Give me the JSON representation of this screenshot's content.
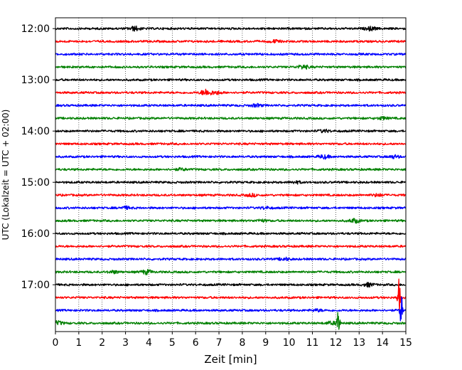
{
  "chart_data": {
    "type": "line",
    "title": "",
    "xlabel": "Zeit  [min]",
    "ylabel": "UTC (Lokalzeit = UTC + 02:00)",
    "xlim": [
      0,
      15
    ],
    "x_ticks": [
      "0",
      "1",
      "2",
      "3",
      "4",
      "5",
      "6",
      "7",
      "8",
      "9",
      "10",
      "11",
      "12",
      "13",
      "14",
      "15"
    ],
    "y_ticks": [
      "12:00",
      "13:00",
      "14:00",
      "15:00",
      "16:00",
      "17:00"
    ],
    "grid": "vertical dotted",
    "trace_colors": [
      "#000000",
      "#ff0000",
      "#0000ff",
      "#008000"
    ],
    "series": [
      {
        "start": "12:00",
        "color": "#000000",
        "events": [
          {
            "t": 3.4,
            "amp": 0.3
          },
          {
            "t": 13.5,
            "amp": 0.25
          }
        ]
      },
      {
        "start": "12:15",
        "color": "#ff0000",
        "events": [
          {
            "t": 9.4,
            "amp": 0.18
          }
        ]
      },
      {
        "start": "12:30",
        "color": "#0000ff",
        "events": []
      },
      {
        "start": "12:45",
        "color": "#008000",
        "events": [
          {
            "t": 10.6,
            "amp": 0.28
          }
        ]
      },
      {
        "start": "13:00",
        "color": "#000000",
        "events": []
      },
      {
        "start": "13:15",
        "color": "#ff0000",
        "events": [
          {
            "t": 6.45,
            "amp": 0.45
          },
          {
            "t": 6.9,
            "amp": 0.2
          }
        ]
      },
      {
        "start": "13:30",
        "color": "#0000ff",
        "events": [
          {
            "t": 8.6,
            "amp": 0.2
          }
        ]
      },
      {
        "start": "13:45",
        "color": "#008000",
        "events": [
          {
            "t": 14.0,
            "amp": 0.18
          }
        ]
      },
      {
        "start": "14:00",
        "color": "#000000",
        "events": [
          {
            "t": 11.5,
            "amp": 0.18
          }
        ]
      },
      {
        "start": "14:15",
        "color": "#ff0000",
        "events": []
      },
      {
        "start": "14:30",
        "color": "#0000ff",
        "events": [
          {
            "t": 11.5,
            "amp": 0.25
          },
          {
            "t": 14.5,
            "amp": 0.2
          }
        ]
      },
      {
        "start": "14:45",
        "color": "#008000",
        "events": [
          {
            "t": 5.4,
            "amp": 0.15
          }
        ]
      },
      {
        "start": "15:00",
        "color": "#000000",
        "events": [
          {
            "t": 10.3,
            "amp": 0.15
          }
        ]
      },
      {
        "start": "15:15",
        "color": "#ff0000",
        "events": [
          {
            "t": 8.4,
            "amp": 0.18
          },
          {
            "t": 13.8,
            "amp": 0.18
          }
        ]
      },
      {
        "start": "15:30",
        "color": "#0000ff",
        "events": [
          {
            "t": 3.0,
            "amp": 0.18
          },
          {
            "t": 9.0,
            "amp": 0.15
          }
        ]
      },
      {
        "start": "15:45",
        "color": "#008000",
        "events": [
          {
            "t": 12.8,
            "amp": 0.28
          },
          {
            "t": 8.8,
            "amp": 0.15
          }
        ]
      },
      {
        "start": "16:00",
        "color": "#000000",
        "events": []
      },
      {
        "start": "16:15",
        "color": "#ff0000",
        "events": []
      },
      {
        "start": "16:30",
        "color": "#0000ff",
        "events": [
          {
            "t": 9.8,
            "amp": 0.2
          }
        ]
      },
      {
        "start": "16:45",
        "color": "#008000",
        "events": [
          {
            "t": 3.9,
            "amp": 0.3
          },
          {
            "t": 2.5,
            "amp": 0.18
          }
        ]
      },
      {
        "start": "17:00",
        "color": "#000000",
        "events": [
          {
            "t": 13.4,
            "amp": 0.25
          }
        ]
      },
      {
        "start": "17:15",
        "color": "#ff0000",
        "events": [
          {
            "t": 14.7,
            "amp": 1.0
          }
        ]
      },
      {
        "start": "17:30",
        "color": "#0000ff",
        "events": [
          {
            "t": 14.8,
            "amp": 0.9
          },
          {
            "t": 11.2,
            "amp": 0.15
          }
        ]
      },
      {
        "start": "17:45",
        "color": "#008000",
        "events": [
          {
            "t": 12.1,
            "amp": 0.9
          },
          {
            "t": 11.8,
            "amp": 0.2
          },
          {
            "t": 0.1,
            "amp": 0.25
          }
        ]
      }
    ]
  }
}
